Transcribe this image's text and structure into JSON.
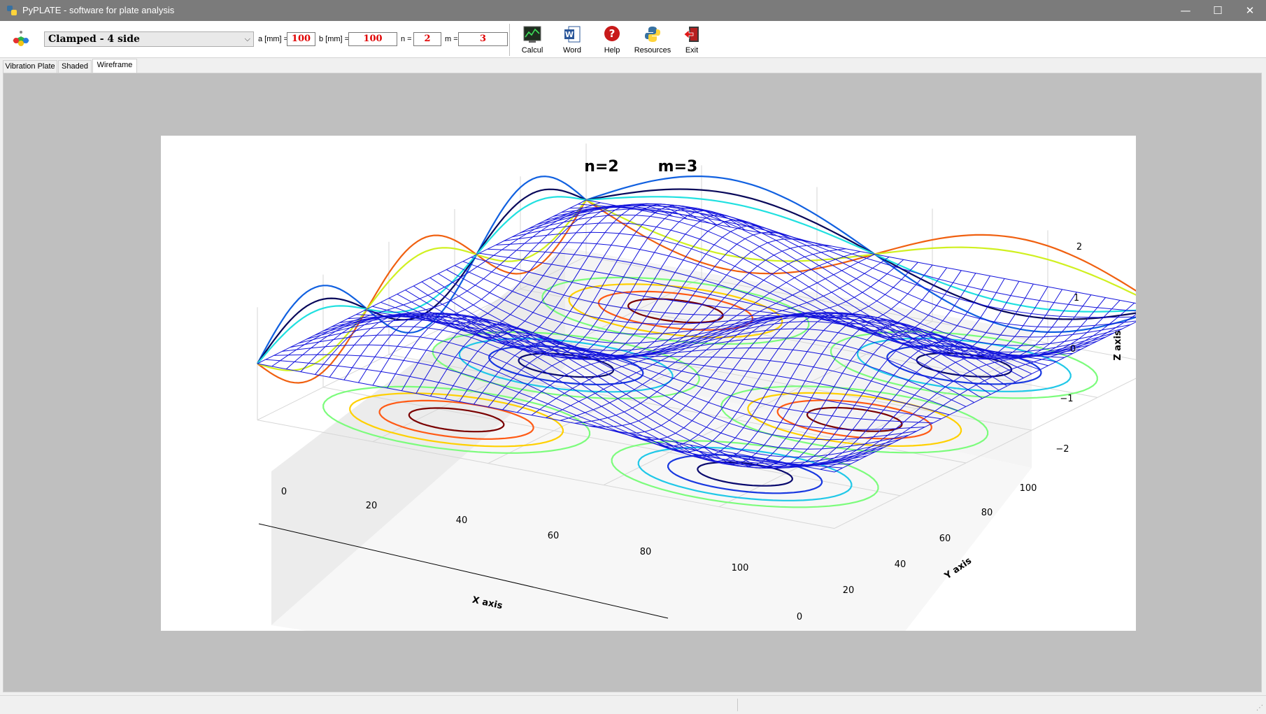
{
  "window": {
    "title": "PyPLATE - software for plate analysis",
    "controls": {
      "minimize": "—",
      "maximize": "☐",
      "close": "✕"
    }
  },
  "toolbar": {
    "boundary_condition": "Clamped - 4 side",
    "params": [
      {
        "label": "a [mm] =",
        "value": "100"
      },
      {
        "label": "b [mm] =",
        "value": "100"
      },
      {
        "label": "n =",
        "value": "2"
      },
      {
        "label": "m =",
        "value": "3"
      }
    ],
    "buttons": [
      {
        "label": "Calcul",
        "icon": "chart-icon"
      },
      {
        "label": "Word",
        "icon": "word-icon"
      },
      {
        "label": "Help",
        "icon": "help-icon"
      },
      {
        "label": "Resources",
        "icon": "python-icon"
      },
      {
        "label": "Exit",
        "icon": "exit-icon"
      }
    ]
  },
  "tabs": [
    {
      "label": "Vibration Plate",
      "active": false
    },
    {
      "label": "Shaded",
      "active": false
    },
    {
      "label": "Wireframe",
      "active": true
    }
  ],
  "plot": {
    "title_n": "n=2",
    "title_m": "m=3",
    "x_axis_label": "X axis",
    "y_axis_label": "Y axis",
    "z_axis_label": "Z axis",
    "x_ticks": [
      "0",
      "20",
      "40",
      "60",
      "80",
      "100"
    ],
    "y_ticks": [
      "0",
      "20",
      "40",
      "60",
      "80",
      "100"
    ],
    "z_ticks": [
      "2",
      "1",
      "0",
      "−1",
      "−2"
    ]
  },
  "chart_data": {
    "type": "wireframe",
    "function": "sin(n*pi*x/a) * sin(m*pi*y/b) mode shape",
    "n": 2,
    "m": 3,
    "xlim": [
      0,
      100
    ],
    "ylim": [
      0,
      100
    ],
    "zlim": [
      -2,
      2
    ],
    "wire_color": "#1414dc"
  }
}
